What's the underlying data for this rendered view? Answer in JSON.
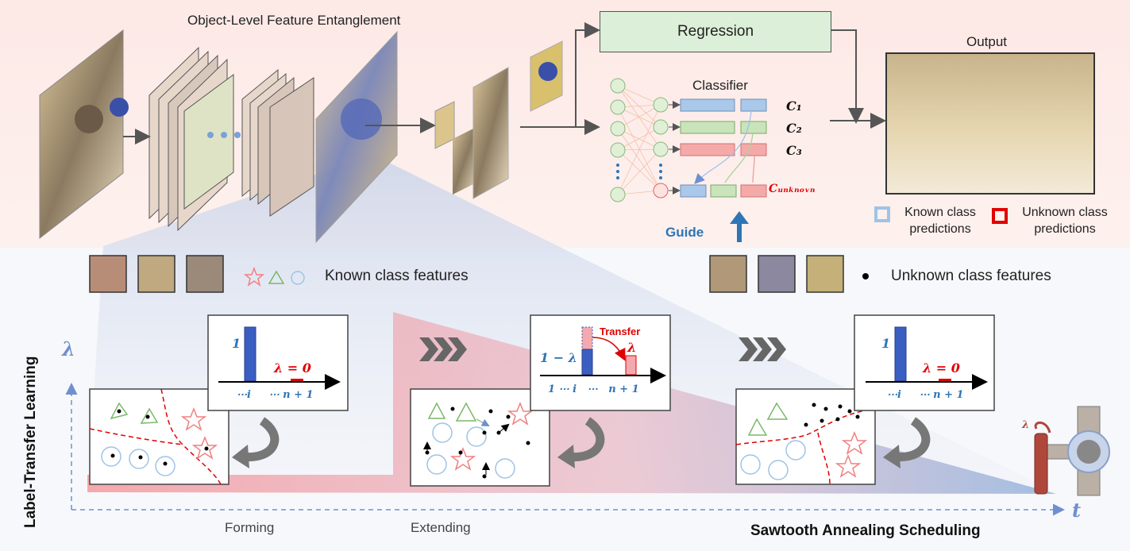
{
  "header": {
    "title": "Object-Level Feature Entanglement",
    "regression_label": "Regression",
    "classifier_label": "Classifier",
    "output_label": "Output",
    "dots_label": "•••",
    "classes": [
      "C₁",
      "C₂",
      "C₃",
      "Cᵤₙₖₙₒᵥₙ"
    ],
    "guide_label": "Guide"
  },
  "legend": {
    "known_predictions": "Known class\npredictions",
    "unknown_predictions": "Unknown class\npredictions",
    "known_features": "Known class features",
    "unknown_features": "Unknown class features"
  },
  "axes": {
    "y_label": "Label-Transfer Learning",
    "y_symbol": "λ",
    "x_symbol": "t",
    "schedule_label": "Sawtooth Annealing Scheduling"
  },
  "stages": [
    {
      "name": "Forming",
      "bar_value_label": "1",
      "lambda_label": "λ = 0",
      "ticks": "⋯i     ⋯ n + 1"
    },
    {
      "name": "Extending",
      "bar_value_label": "1 − λ",
      "lambda_label": "λ",
      "transfer_label": "Transfer",
      "ticks": "1 ⋯ i   ⋯   n + 1"
    },
    {
      "name": "",
      "bar_value_label": "1",
      "lambda_label": "λ = 0",
      "ticks": "⋯i     ⋯ n + 1"
    }
  ],
  "knob_label": "λ",
  "colors": {
    "blue": "#3a5fc0",
    "pink": "#f4a9ae",
    "green": "#b7d9a8",
    "lightblue": "#9fc3e7",
    "red": "#e00000",
    "guide": "#2e75b6"
  }
}
